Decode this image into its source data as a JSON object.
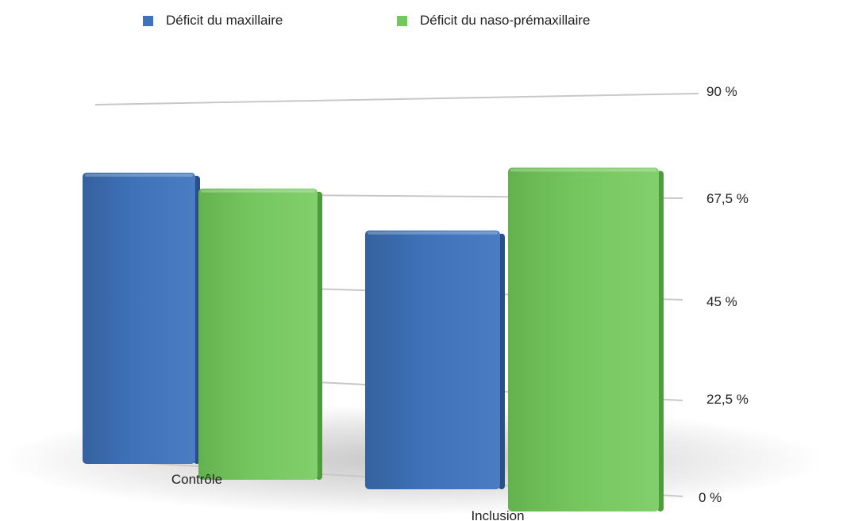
{
  "chart_data": {
    "type": "bar",
    "categories": [
      "Contrôle",
      "Inclusion"
    ],
    "series": [
      {
        "name": "Déficit du maxillaire",
        "values": [
          72,
          64
        ]
      },
      {
        "name": "Déficit du naso-prémaxillaire",
        "values": [
          72,
          85
        ]
      }
    ],
    "y_ticks": [
      "0 %",
      "22,5 %",
      "45 %",
      "67,5 %",
      "90 %"
    ],
    "ylim": [
      0,
      90
    ],
    "grid": true,
    "legend": "top",
    "colors": {
      "Déficit du maxillaire": "#3f72b9",
      "Déficit du naso-prémaxillaire": "#74c65f"
    },
    "style": "3d"
  }
}
